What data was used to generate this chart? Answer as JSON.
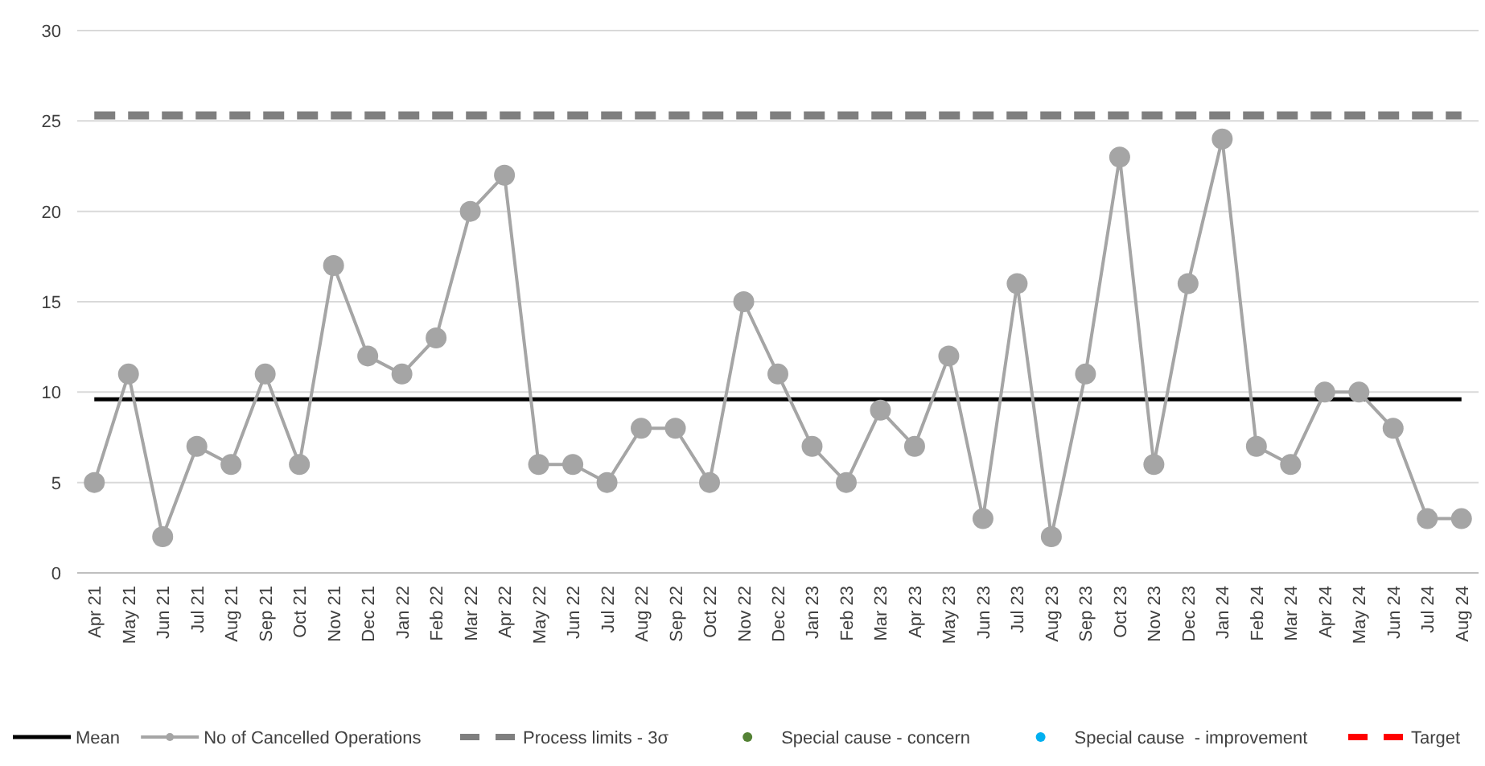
{
  "chart_data": {
    "type": "line",
    "categories": [
      "Apr 21",
      "May 21",
      "Jun 21",
      "Jul 21",
      "Aug 21",
      "Sep 21",
      "Oct 21",
      "Nov 21",
      "Dec 21",
      "Jan 22",
      "Feb 22",
      "Mar 22",
      "Apr 22",
      "May 22",
      "Jun 22",
      "Jul 22",
      "Aug 22",
      "Sep 22",
      "Oct 22",
      "Nov 22",
      "Dec 22",
      "Jan 23",
      "Feb 23",
      "Mar 23",
      "Apr 23",
      "May 23",
      "Jun 23",
      "Jul 23",
      "Aug 23",
      "Sep 23",
      "Oct 23",
      "Nov 23",
      "Dec 23",
      "Jan 24",
      "Feb 24",
      "Mar 24",
      "Apr 24",
      "May 24",
      "Jun 24",
      "Jul 24",
      "Aug 24"
    ],
    "series": [
      {
        "name": "Mean",
        "color": "#000000",
        "marker": "none",
        "line_style": "solid",
        "values": [
          9.6,
          9.6,
          9.6,
          9.6,
          9.6,
          9.6,
          9.6,
          9.6,
          9.6,
          9.6,
          9.6,
          9.6,
          9.6,
          9.6,
          9.6,
          9.6,
          9.6,
          9.6,
          9.6,
          9.6,
          9.6,
          9.6,
          9.6,
          9.6,
          9.6,
          9.6,
          9.6,
          9.6,
          9.6,
          9.6,
          9.6,
          9.6,
          9.6,
          9.6,
          9.6,
          9.6,
          9.6,
          9.6,
          9.6,
          9.6,
          9.6
        ]
      },
      {
        "name": "No of Cancelled Operations",
        "color": "#a5a5a5",
        "marker": "circle",
        "line_style": "solid",
        "values": [
          5,
          11,
          2,
          7,
          6,
          11,
          6,
          17,
          12,
          11,
          13,
          20,
          22,
          6,
          6,
          5,
          8,
          8,
          5,
          15,
          11,
          7,
          5,
          9,
          7,
          12,
          3,
          16,
          2,
          11,
          23,
          6,
          16,
          24,
          7,
          6,
          10,
          10,
          8,
          3,
          3
        ]
      },
      {
        "name": "Process limits - 3σ",
        "color": "#7f7f7f",
        "marker": "none",
        "line_style": "dashed",
        "values": [
          25.3,
          25.3,
          25.3,
          25.3,
          25.3,
          25.3,
          25.3,
          25.3,
          25.3,
          25.3,
          25.3,
          25.3,
          25.3,
          25.3,
          25.3,
          25.3,
          25.3,
          25.3,
          25.3,
          25.3,
          25.3,
          25.3,
          25.3,
          25.3,
          25.3,
          25.3,
          25.3,
          25.3,
          25.3,
          25.3,
          25.3,
          25.3,
          25.3,
          25.3,
          25.3,
          25.3,
          25.3,
          25.3,
          25.3,
          25.3,
          25.3
        ]
      },
      {
        "name": "Special cause - concern",
        "type": "scatter",
        "color": "#548235",
        "marker": "circle",
        "values": [
          null,
          null,
          null,
          null,
          null,
          null,
          null,
          null,
          null,
          null,
          null,
          null,
          null,
          null,
          null,
          null,
          null,
          null,
          null,
          null,
          null,
          null,
          null,
          null,
          null,
          null,
          null,
          null,
          null,
          null,
          null,
          null,
          null,
          null,
          null,
          null,
          null,
          null,
          null,
          null,
          null
        ]
      },
      {
        "name": "Special cause  - improvement",
        "type": "scatter",
        "color": "#00b0f0",
        "marker": "circle",
        "values": [
          null,
          null,
          null,
          null,
          null,
          null,
          null,
          null,
          null,
          null,
          null,
          null,
          null,
          null,
          null,
          null,
          null,
          null,
          null,
          null,
          null,
          null,
          null,
          null,
          null,
          null,
          null,
          null,
          null,
          null,
          null,
          null,
          null,
          null,
          null,
          null,
          null,
          null,
          null,
          null,
          null
        ]
      },
      {
        "name": "Target",
        "color": "#ff0000",
        "marker": "none",
        "line_style": "dashed",
        "values": [
          null,
          null,
          null,
          null,
          null,
          null,
          null,
          null,
          null,
          null,
          null,
          null,
          null,
          null,
          null,
          null,
          null,
          null,
          null,
          null,
          null,
          null,
          null,
          null,
          null,
          null,
          null,
          null,
          null,
          null,
          null,
          null,
          null,
          null,
          null,
          null,
          null,
          null,
          null,
          null,
          null
        ]
      }
    ],
    "ylim": [
      0,
      30
    ],
    "yticks": [
      0,
      5,
      10,
      15,
      20,
      25,
      30
    ],
    "grid": "y",
    "legend": "bottom"
  }
}
